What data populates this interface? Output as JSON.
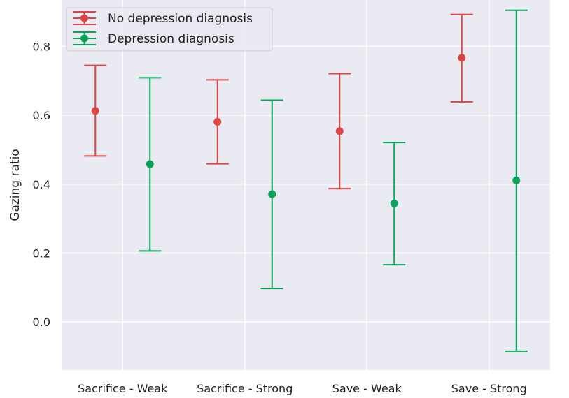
{
  "chart_data": {
    "type": "scatter",
    "ylabel": "Gazing ratio",
    "xlabel": "",
    "ylim": [
      -0.14,
      0.935
    ],
    "yticks": [
      0.0,
      0.2,
      0.4,
      0.6,
      0.8
    ],
    "ytick_labels": [
      "0.0",
      "0.2",
      "0.4",
      "0.6",
      "0.8"
    ],
    "categories": [
      "Sacrifice - Weak",
      "Sacrifice - Strong",
      "Save - Weak",
      "Save - Strong"
    ],
    "grid": true,
    "legend_position": "top-left",
    "background_color": "#eaeaf2",
    "series": [
      {
        "name": "No depression diagnosis",
        "color": "#dd4444",
        "mean": [
          0.613,
          0.581,
          0.554,
          0.767
        ],
        "lower": [
          0.482,
          0.459,
          0.387,
          0.639
        ],
        "upper": [
          0.745,
          0.703,
          0.721,
          0.893
        ]
      },
      {
        "name": "Depression diagnosis",
        "color": "#0aa35a",
        "mean": [
          0.458,
          0.371,
          0.344,
          0.411
        ],
        "lower": [
          0.206,
          0.097,
          0.166,
          -0.085
        ],
        "upper": [
          0.709,
          0.644,
          0.521,
          0.905
        ]
      }
    ]
  }
}
